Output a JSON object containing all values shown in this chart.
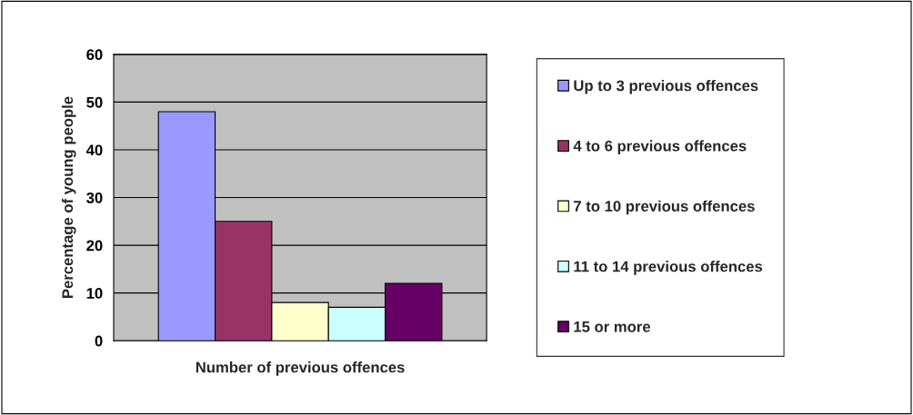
{
  "chart_data": {
    "type": "bar",
    "xlabel": "Number of previous offences",
    "ylabel": "Percentage of young people",
    "categories": [
      null
    ],
    "series": [
      {
        "name": "Up to 3 previous offences",
        "color": "#9999ff",
        "values": [
          48
        ]
      },
      {
        "name": "4 to 6 previous offences",
        "color": "#993366",
        "values": [
          25
        ]
      },
      {
        "name": "7 to 10 previous offences",
        "color": "#ffffcc",
        "values": [
          8
        ]
      },
      {
        "name": "11 to 14 previous offences",
        "color": "#ccffff",
        "values": [
          7
        ]
      },
      {
        "name": "15 or more",
        "color": "#660066",
        "values": [
          12
        ]
      }
    ],
    "ylim": [
      0,
      60
    ],
    "yticks": [
      0,
      10,
      20,
      30,
      40,
      50,
      60
    ],
    "grid": "y",
    "legend": "right"
  }
}
